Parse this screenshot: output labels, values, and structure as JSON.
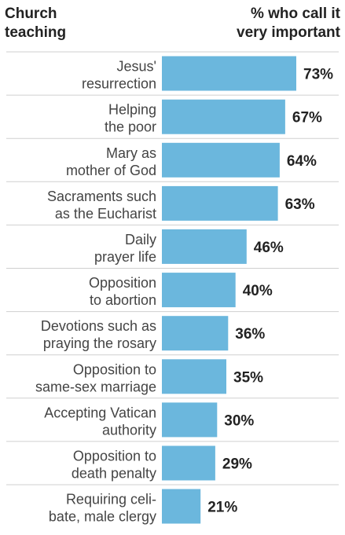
{
  "header": {
    "left_line1": "Church",
    "left_line2": "teaching",
    "right_line1": "% who call it",
    "right_line2": "very important"
  },
  "colors": {
    "bar": "#6bb7dd",
    "separator": "#cfcfcf"
  },
  "chart_data": {
    "type": "bar",
    "orientation": "horizontal",
    "categories": [
      [
        "Jesus'",
        "resurrection"
      ],
      [
        "Helping",
        "the poor"
      ],
      [
        "Mary as",
        "mother of God"
      ],
      [
        "Sacraments such",
        "as the Eucharist"
      ],
      [
        "Daily",
        "prayer life"
      ],
      [
        "Opposition",
        "to abortion"
      ],
      [
        "Devotions such as",
        "praying the rosary"
      ],
      [
        "Opposition to",
        "same-sex marriage"
      ],
      [
        "Accepting Vatican",
        "authority"
      ],
      [
        "Opposition to",
        "death penalty"
      ],
      [
        "Requiring celi-",
        "bate, male clergy"
      ]
    ],
    "values": [
      73,
      67,
      64,
      63,
      46,
      40,
      36,
      35,
      30,
      29,
      21
    ],
    "value_labels": [
      "73%",
      "67%",
      "64%",
      "63%",
      "46%",
      "40%",
      "36%",
      "35%",
      "30%",
      "29%",
      "21%"
    ],
    "xlim": [
      0,
      73
    ],
    "grid": false,
    "legend": "none"
  }
}
